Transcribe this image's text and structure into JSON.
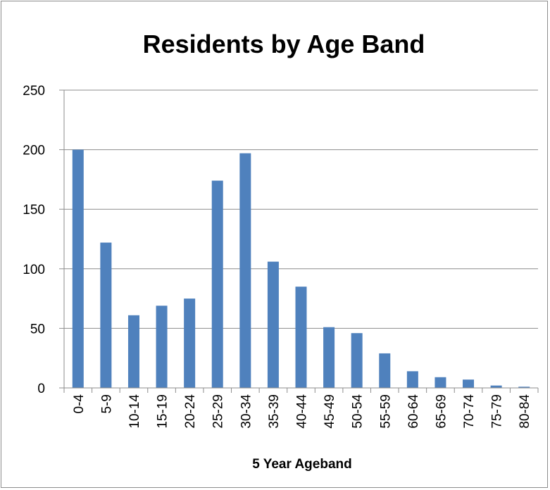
{
  "chart_data": {
    "type": "bar",
    "title": "Residents by Age Band",
    "xlabel": "5 Year  Ageband",
    "ylabel": "",
    "ylim": [
      0,
      250
    ],
    "yticks": [
      "0",
      "50",
      "100",
      "150",
      "200",
      "250"
    ],
    "grid": true,
    "legend": "none",
    "bar_color": "#4f81bd",
    "categories": [
      "0-4",
      "5-9",
      "10-14",
      "15-19",
      "20-24",
      "25-29",
      "30-34",
      "35-39",
      "40-44",
      "45-49",
      "50-54",
      "55-59",
      "60-64",
      "65-69",
      "70-74",
      "75-79",
      "80-84"
    ],
    "values": [
      200,
      122,
      61,
      69,
      75,
      174,
      197,
      106,
      85,
      51,
      46,
      29,
      14,
      9,
      7,
      2,
      1
    ]
  }
}
